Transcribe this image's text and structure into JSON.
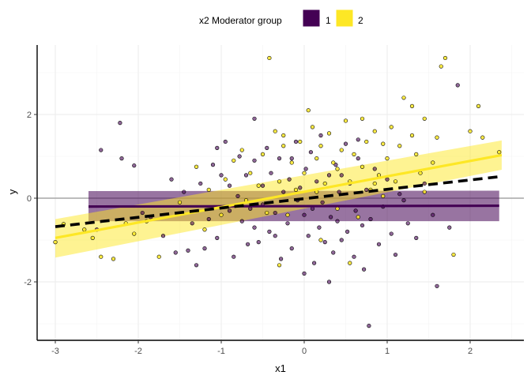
{
  "chart_data": {
    "type": "scatter",
    "xlabel": "x1",
    "ylabel": "y",
    "xlim": [
      -3.2,
      2.65
    ],
    "ylim": [
      -3.35,
      3.65
    ],
    "x_ticks": [
      -3,
      -2,
      -1,
      0,
      1,
      2
    ],
    "y_ticks": [
      -2,
      0,
      2
    ],
    "x_tick_labels": [
      "-3",
      "-2",
      "-1",
      "0",
      "1",
      "2"
    ],
    "y_tick_labels": [
      "-2",
      "0",
      "2"
    ],
    "grid": true,
    "legend_position": "top",
    "legend": {
      "title": "x2 Moderator group",
      "items": [
        {
          "label": "1",
          "color": "#440154"
        },
        {
          "label": "2",
          "color": "#FDE725"
        }
      ]
    },
    "reference_line_y": 0,
    "overall_fit": {
      "style": "dashed",
      "color": "#000000",
      "x": [
        -3.0,
        2.38
      ],
      "y": [
        -0.68,
        0.52
      ]
    },
    "series": [
      {
        "name": "1",
        "color": "#440154",
        "fit": {
          "x": [
            -2.6,
            2.35
          ],
          "y": [
            -0.2,
            -0.18
          ]
        },
        "band": {
          "x": [
            -2.6,
            2.35
          ],
          "lower": [
            -0.55,
            -0.55
          ],
          "upper": [
            0.17,
            0.18
          ]
        },
        "points": [
          [
            -2.45,
            1.15
          ],
          [
            -2.2,
            0.95
          ],
          [
            -2.22,
            1.8
          ],
          [
            -2.05,
            0.78
          ],
          [
            -1.95,
            -0.35
          ],
          [
            -1.85,
            -0.45
          ],
          [
            -1.7,
            -0.9
          ],
          [
            -1.55,
            -1.3
          ],
          [
            -1.45,
            0.15
          ],
          [
            -1.4,
            -1.25
          ],
          [
            -1.35,
            -0.6
          ],
          [
            -1.3,
            -1.6
          ],
          [
            -1.25,
            0.35
          ],
          [
            -1.2,
            -1.2
          ],
          [
            -1.15,
            -0.5
          ],
          [
            -1.1,
            0.8
          ],
          [
            -1.05,
            -0.95
          ],
          [
            -1.0,
            0.55
          ],
          [
            -0.95,
            1.35
          ],
          [
            -0.9,
            -0.3
          ],
          [
            -0.9,
            0.3
          ],
          [
            -0.85,
            -1.4
          ],
          [
            -0.8,
            0.05
          ],
          [
            -0.78,
            1.0
          ],
          [
            -0.75,
            -0.55
          ],
          [
            -0.7,
            0.55
          ],
          [
            -0.68,
            -1.1
          ],
          [
            -0.65,
            -0.25
          ],
          [
            -0.6,
            0.9
          ],
          [
            -0.6,
            -0.7
          ],
          [
            -0.55,
            -1.05
          ],
          [
            -0.5,
            0.3
          ],
          [
            -0.5,
            -0.15
          ],
          [
            -0.45,
            1.2
          ],
          [
            -0.42,
            -0.8
          ],
          [
            -0.4,
            0.6
          ],
          [
            -0.35,
            -0.35
          ],
          [
            -0.3,
            0.95
          ],
          [
            -0.28,
            -1.45
          ],
          [
            -0.25,
            0.15
          ],
          [
            -0.2,
            -0.6
          ],
          [
            -0.18,
            0.45
          ],
          [
            -0.15,
            -1.2
          ],
          [
            -0.1,
            1.35
          ],
          [
            -0.08,
            -0.05
          ],
          [
            -0.05,
            0.25
          ],
          [
            0.0,
            -1.8
          ],
          [
            0.0,
            -0.4
          ],
          [
            0.02,
            0.7
          ],
          [
            0.05,
            -0.9
          ],
          [
            0.08,
            1.1
          ],
          [
            0.1,
            -0.25
          ],
          [
            0.12,
            -1.55
          ],
          [
            0.15,
            0.4
          ],
          [
            0.18,
            -0.7
          ],
          [
            0.2,
            1.5
          ],
          [
            0.22,
            -0.1
          ],
          [
            0.25,
            -1.05
          ],
          [
            0.3,
            0.55
          ],
          [
            0.32,
            -0.45
          ],
          [
            0.35,
            -1.3
          ],
          [
            0.38,
            0.8
          ],
          [
            0.4,
            -0.55
          ],
          [
            0.42,
            0.15
          ],
          [
            0.45,
            -1.0
          ],
          [
            0.5,
            1.3
          ],
          [
            0.52,
            -0.8
          ],
          [
            0.55,
            0.35
          ],
          [
            0.6,
            -1.4
          ],
          [
            0.62,
            -0.3
          ],
          [
            0.65,
            0.95
          ],
          [
            0.7,
            -0.65
          ],
          [
            0.72,
            -1.7
          ],
          [
            0.75,
            0.2
          ],
          [
            0.78,
            -3.05
          ],
          [
            0.8,
            -0.5
          ],
          [
            0.85,
            0.7
          ],
          [
            0.9,
            -1.1
          ],
          [
            0.95,
            -0.2
          ],
          [
            1.0,
            0.45
          ],
          [
            1.05,
            -0.85
          ],
          [
            1.1,
            -1.35
          ],
          [
            1.15,
            0.1
          ],
          [
            1.25,
            -0.6
          ],
          [
            1.35,
            -0.95
          ],
          [
            1.45,
            0.35
          ],
          [
            1.55,
            -0.4
          ],
          [
            1.6,
            -2.1
          ],
          [
            1.75,
            -0.7
          ],
          [
            1.85,
            2.7
          ],
          [
            0.65,
            1.4
          ],
          [
            -0.15,
            0.95
          ],
          [
            -0.6,
            1.9
          ],
          [
            -1.05,
            1.2
          ],
          [
            -1.6,
            0.45
          ],
          [
            -2.5,
            -0.75
          ],
          [
            0.3,
            -2.0
          ],
          [
            0.45,
            0.55
          ],
          [
            1.2,
            -0.05
          ],
          [
            -0.35,
            -0.9
          ]
        ]
      },
      {
        "name": "2",
        "color": "#FDE725",
        "fit": {
          "x": [
            -3.0,
            2.38
          ],
          "y": [
            -0.95,
            1.03
          ]
        },
        "band": {
          "x": [
            -3.0,
            2.38
          ],
          "lower": [
            -1.42,
            0.68
          ],
          "upper": [
            -0.5,
            1.38
          ]
        },
        "points": [
          [
            -3.0,
            -1.05
          ],
          [
            -2.9,
            -0.62
          ],
          [
            -2.55,
            -0.95
          ],
          [
            -2.45,
            -1.4
          ],
          [
            -2.3,
            -1.45
          ],
          [
            -2.15,
            -0.6
          ],
          [
            -2.05,
            -0.85
          ],
          [
            -1.9,
            -0.55
          ],
          [
            -1.75,
            -1.4
          ],
          [
            -1.5,
            -0.1
          ],
          [
            -1.3,
            0.75
          ],
          [
            -1.15,
            0.2
          ],
          [
            -1.0,
            -0.4
          ],
          [
            -0.95,
            0.45
          ],
          [
            -0.85,
            0.9
          ],
          [
            -0.75,
            1.15
          ],
          [
            -0.65,
            0.6
          ],
          [
            -0.55,
            0.3
          ],
          [
            -0.5,
            1.05
          ],
          [
            -0.45,
            -0.35
          ],
          [
            -0.42,
            3.35
          ],
          [
            -0.35,
            1.6
          ],
          [
            -0.3,
            0.4
          ],
          [
            -0.25,
            1.25
          ],
          [
            -0.2,
            -0.4
          ],
          [
            -0.15,
            0.85
          ],
          [
            -0.1,
            0.2
          ],
          [
            -0.05,
            1.35
          ],
          [
            0.0,
            0.6
          ],
          [
            0.05,
            2.1
          ],
          [
            0.1,
            1.7
          ],
          [
            0.15,
            0.95
          ],
          [
            0.2,
            1.25
          ],
          [
            0.25,
            0.35
          ],
          [
            0.3,
            1.55
          ],
          [
            0.35,
            0.85
          ],
          [
            0.4,
            -0.25
          ],
          [
            0.45,
            1.15
          ],
          [
            0.5,
            1.85
          ],
          [
            0.55,
            0.4
          ],
          [
            0.6,
            1.05
          ],
          [
            0.65,
            -0.45
          ],
          [
            0.7,
            0.75
          ],
          [
            0.75,
            1.35
          ],
          [
            0.8,
            0.2
          ],
          [
            0.85,
            1.6
          ],
          [
            0.9,
            0.55
          ],
          [
            0.95,
            1.3
          ],
          [
            1.0,
            0.95
          ],
          [
            1.05,
            1.7
          ],
          [
            1.1,
            0.4
          ],
          [
            1.15,
            1.25
          ],
          [
            1.2,
            2.4
          ],
          [
            1.3,
            2.2
          ],
          [
            1.35,
            1.05
          ],
          [
            1.4,
            0.6
          ],
          [
            1.45,
            0.15
          ],
          [
            1.55,
            0.85
          ],
          [
            1.6,
            1.45
          ],
          [
            1.65,
            3.15
          ],
          [
            1.7,
            3.35
          ],
          [
            1.8,
            -1.35
          ],
          [
            2.0,
            1.6
          ],
          [
            2.1,
            2.2
          ],
          [
            2.15,
            1.45
          ],
          [
            2.35,
            1.1
          ],
          [
            0.55,
            -1.55
          ],
          [
            -0.3,
            -1.6
          ],
          [
            0.2,
            -1.0
          ],
          [
            1.3,
            1.5
          ],
          [
            -1.2,
            -0.75
          ],
          [
            -0.7,
            -0.05
          ],
          [
            0.95,
            0.05
          ],
          [
            0.4,
            0.7
          ],
          [
            1.45,
            1.9
          ],
          [
            -0.25,
            1.5
          ],
          [
            0.7,
            1.9
          ],
          [
            0.15,
            0.15
          ],
          [
            -2.65,
            -0.75
          ],
          [
            0.85,
            0.35
          ]
        ]
      }
    ]
  }
}
